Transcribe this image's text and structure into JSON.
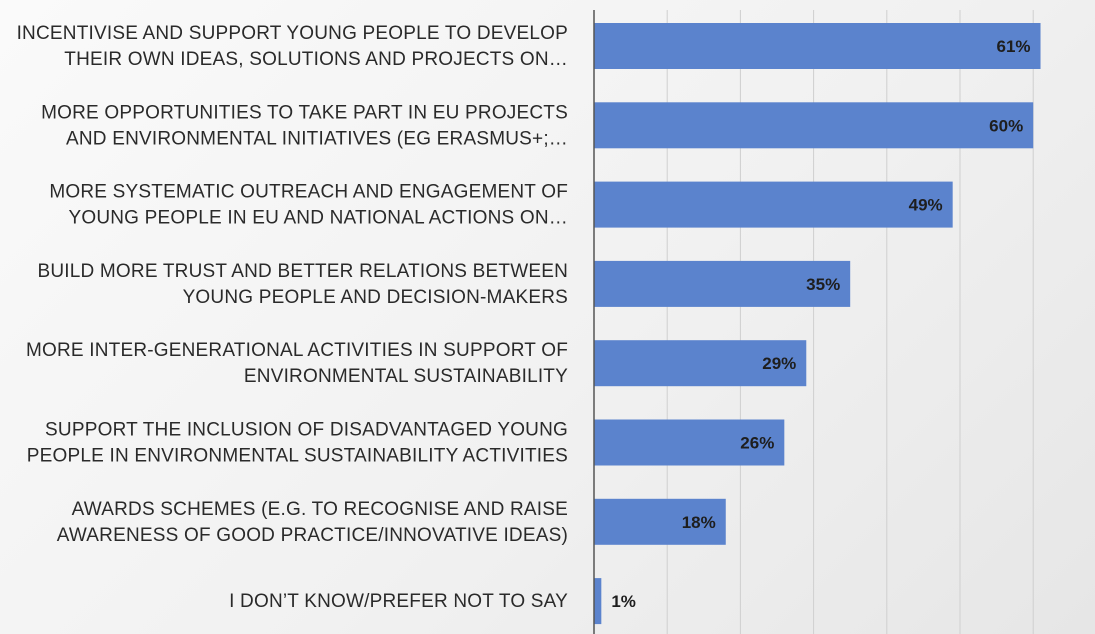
{
  "chart_data": {
    "type": "bar",
    "orientation": "horizontal",
    "categories": [
      [
        "INCENTIVISE AND SUPPORT YOUNG PEOPLE TO DEVELOP",
        "THEIR OWN IDEAS, SOLUTIONS AND PROJECTS ON…"
      ],
      [
        "MORE OPPORTUNITIES TO TAKE PART IN EU PROJECTS",
        "AND ENVIRONMENTAL INITIATIVES (EG ERASMUS+;…"
      ],
      [
        "MORE SYSTEMATIC OUTREACH AND ENGAGEMENT OF",
        "YOUNG PEOPLE IN EU AND NATIONAL ACTIONS ON…"
      ],
      [
        "BUILD MORE TRUST AND BETTER RELATIONS BETWEEN",
        "YOUNG PEOPLE AND DECISION-MAKERS"
      ],
      [
        "MORE INTER-GENERATIONAL ACTIVITIES IN SUPPORT OF",
        "ENVIRONMENTAL SUSTAINABILITY"
      ],
      [
        "SUPPORT THE INCLUSION OF DISADVANTAGED YOUNG",
        "PEOPLE IN ENVIRONMENTAL SUSTAINABILITY ACTIVITIES"
      ],
      [
        "AWARDS SCHEMES (E.G. TO RECOGNISE AND RAISE",
        "AWARENESS OF GOOD PRACTICE/INNOVATIVE IDEAS)"
      ],
      [
        "I DON’T KNOW/PREFER NOT TO SAY"
      ]
    ],
    "values": [
      61,
      60,
      49,
      35,
      29,
      26,
      18,
      1
    ],
    "value_labels": [
      "61%",
      "60%",
      "49%",
      "35%",
      "29%",
      "26%",
      "18%",
      "1%"
    ],
    "xlim": [
      0,
      70
    ],
    "grid": true,
    "bar_color": "#5b83cd",
    "grid_color": "#cfcfcf",
    "axis_color": "#555555",
    "title": "",
    "xlabel": "",
    "ylabel": ""
  }
}
